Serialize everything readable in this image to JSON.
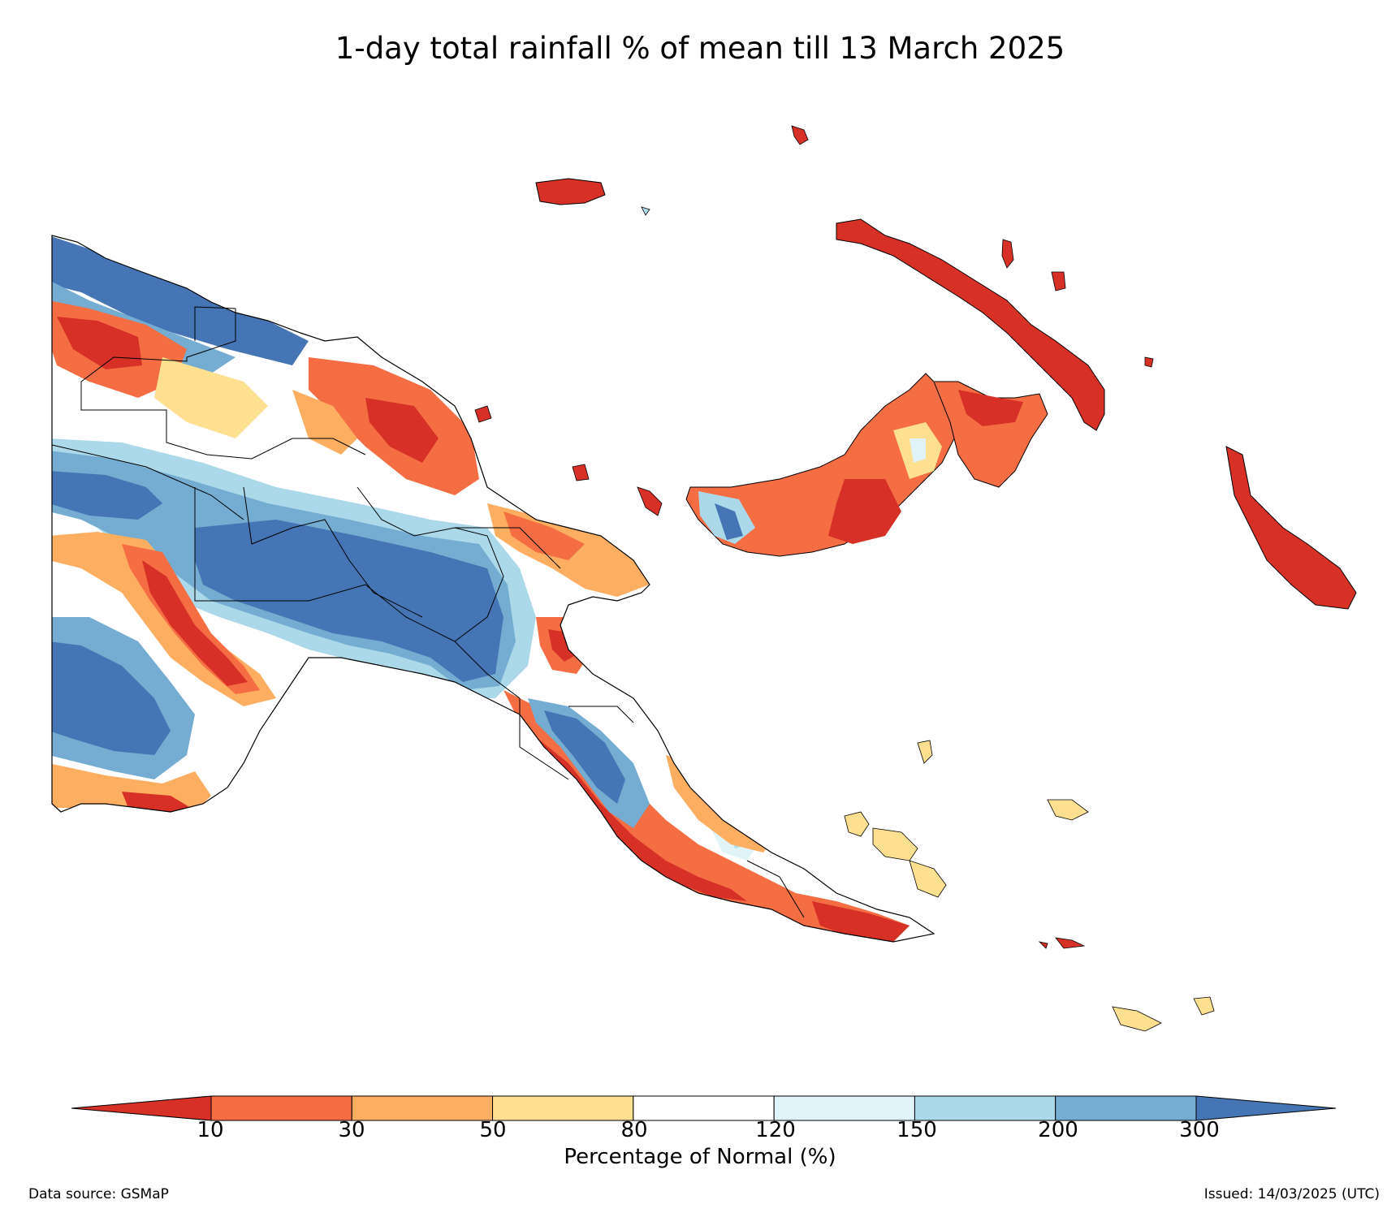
{
  "title": "1-day total rainfall % of mean till 13 March 2025",
  "legend": {
    "label": "Percentage of Normal (%)",
    "ticks": [
      "10",
      "30",
      "50",
      "80",
      "120",
      "150",
      "200",
      "300"
    ],
    "bins": [
      {
        "range": "<10",
        "color": "#d73027"
      },
      {
        "range": "10-30",
        "color": "#f46d43"
      },
      {
        "range": "30-50",
        "color": "#fdae61"
      },
      {
        "range": "50-80",
        "color": "#fee090"
      },
      {
        "range": "80-120",
        "color": "#ffffff"
      },
      {
        "range": "120-150",
        "color": "#e0f3f8"
      },
      {
        "range": "150-200",
        "color": "#abd9e9"
      },
      {
        "range": "200-300",
        "color": "#74add1"
      },
      {
        "range": ">300",
        "color": "#4575b4"
      }
    ]
  },
  "footer": {
    "source": "Data source: GSMaP",
    "issued": "Issued: 14/03/2025 (UTC)"
  },
  "map": {
    "region": "Papua New Guinea",
    "regions": [
      {
        "name": "west-mainland-north",
        "category": "<10"
      },
      {
        "name": "sepik-lowlands",
        "category": ">300"
      },
      {
        "name": "highlands",
        "category": ">300"
      },
      {
        "name": "western-province-south",
        "category": "150-200"
      },
      {
        "name": "southern-coast",
        "category": "<10"
      },
      {
        "name": "new-britain",
        "category": "<10"
      },
      {
        "name": "new-ireland",
        "category": "<10"
      },
      {
        "name": "bougainville",
        "category": "<10"
      },
      {
        "name": "manus",
        "category": "<10"
      },
      {
        "name": "milne-bay-islands",
        "category": "50-80"
      }
    ]
  }
}
